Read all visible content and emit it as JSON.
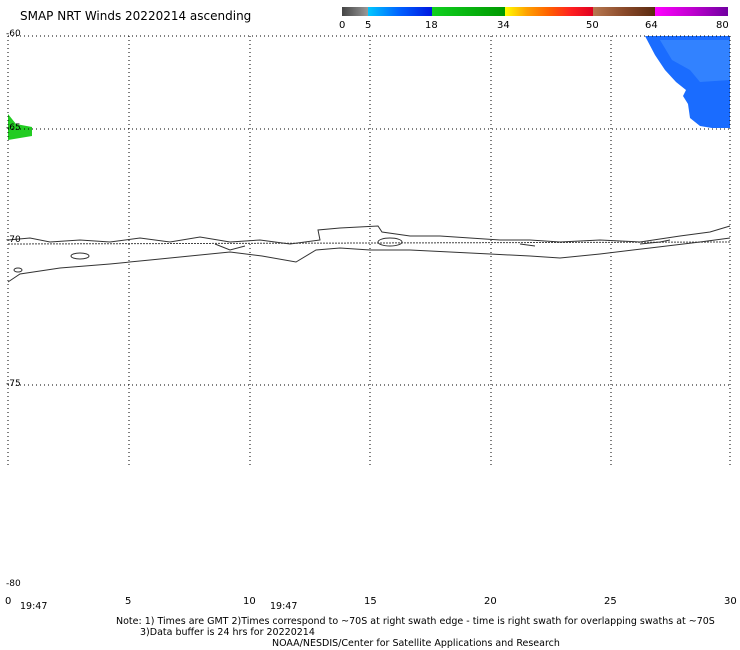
{
  "header": {
    "title": "SMAP NRT Winds 20220214 ascending"
  },
  "colorbar": {
    "labels": [
      "0",
      "5",
      "18",
      "34",
      "50",
      "64",
      "80"
    ],
    "segments": [
      {
        "from": 0,
        "to": 5,
        "color": "#555555"
      },
      {
        "from": 5,
        "to": 18,
        "color": "#1a6cff"
      },
      {
        "from": 18,
        "to": 34,
        "color": "#16c11f"
      },
      {
        "from": 34,
        "to": 50,
        "color": "#f0a010"
      },
      {
        "from": 50,
        "to": 64,
        "color": "#9c5a34"
      },
      {
        "from": 64,
        "to": 80,
        "color": "#c000d0"
      }
    ]
  },
  "map": {
    "lat_labels": [
      "-60",
      "-65",
      "-70",
      "-75",
      "-80"
    ],
    "lon_labels": [
      "0",
      "5",
      "10",
      "15",
      "20",
      "25",
      "30"
    ],
    "time_labels": [
      "19:47",
      "19:47"
    ]
  },
  "footer": {
    "note_line1": "Note: 1) Times are GMT 2)Times correspond to ~70S at right swath edge - time is right swath for overlapping swaths at ~70S",
    "note_line2": "3)Data buffer is 24 hrs for 20220214",
    "credit": "NOAA/NESDIS/Center for Satellite Applications and Research"
  }
}
